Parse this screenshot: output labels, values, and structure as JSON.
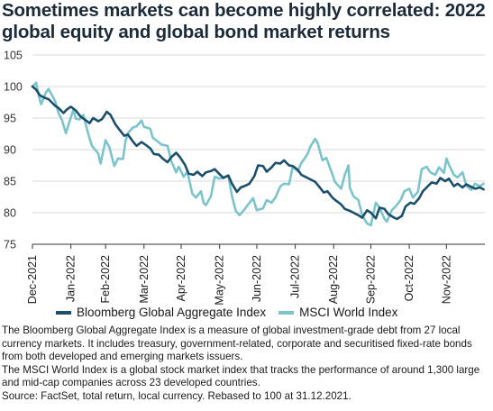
{
  "title": "Sometimes markets can become highly correlated: 2022 global equity and global bond market returns",
  "colors": {
    "bond": "#1b4f6b",
    "equity": "#7cc4cc",
    "grid": "#d9d9d9",
    "axis": "#333333"
  },
  "chart_data": {
    "type": "line",
    "ylim": [
      75,
      105
    ],
    "yticks": [
      75,
      80,
      85,
      90,
      95,
      100,
      105
    ],
    "xlim": [
      "2021-12-31",
      "2022-12-31"
    ],
    "xticks": [
      {
        "date": "2021-12-31",
        "label": "Dec-2021"
      },
      {
        "date": "2022-01-31",
        "label": "Jan-2022"
      },
      {
        "date": "2022-02-28",
        "label": "Feb-2022"
      },
      {
        "date": "2022-03-31",
        "label": "Mar-2022"
      },
      {
        "date": "2022-04-30",
        "label": "Apr-2022"
      },
      {
        "date": "2022-05-31",
        "label": "May-2022"
      },
      {
        "date": "2022-06-30",
        "label": "Jun-2022"
      },
      {
        "date": "2022-07-31",
        "label": "Jul-2022"
      },
      {
        "date": "2022-08-31",
        "label": "Aug-2022"
      },
      {
        "date": "2022-09-30",
        "label": "Sep-2022"
      },
      {
        "date": "2022-10-31",
        "label": "Oct-2022"
      },
      {
        "date": "2022-11-30",
        "label": "Nov-2022"
      }
    ],
    "series": [
      {
        "name": "Bloomberg Global Aggregate Index",
        "color": "#1b4f6b",
        "points": [
          [
            "2021-12-31",
            100
          ],
          [
            "2022-01-03",
            99.5
          ],
          [
            "2022-01-06",
            98.6
          ],
          [
            "2022-01-10",
            98.2
          ],
          [
            "2022-01-13",
            98.0
          ],
          [
            "2022-01-18",
            97.0
          ],
          [
            "2022-01-21",
            96.6
          ],
          [
            "2022-01-25",
            95.8
          ],
          [
            "2022-01-28",
            96.4
          ],
          [
            "2022-01-31",
            96.8
          ],
          [
            "2022-02-04",
            96.2
          ],
          [
            "2022-02-08",
            95.2
          ],
          [
            "2022-02-11",
            94.8
          ],
          [
            "2022-02-15",
            94.2
          ],
          [
            "2022-02-18",
            95.0
          ],
          [
            "2022-02-22",
            94.5
          ],
          [
            "2022-02-25",
            94.8
          ],
          [
            "2022-03-01",
            96.0
          ],
          [
            "2022-03-04",
            95.5
          ],
          [
            "2022-03-08",
            94.0
          ],
          [
            "2022-03-11",
            93.2
          ],
          [
            "2022-03-15",
            92.2
          ],
          [
            "2022-03-18",
            92.4
          ],
          [
            "2022-03-22",
            91.3
          ],
          [
            "2022-03-25",
            90.6
          ],
          [
            "2022-03-29",
            91.2
          ],
          [
            "2022-04-01",
            90.8
          ],
          [
            "2022-04-05",
            90.2
          ],
          [
            "2022-04-08",
            89.3
          ],
          [
            "2022-04-12",
            89.2
          ],
          [
            "2022-04-15",
            88.6
          ],
          [
            "2022-04-19",
            88.0
          ],
          [
            "2022-04-22",
            88.8
          ],
          [
            "2022-04-26",
            89.5
          ],
          [
            "2022-04-29",
            88.8
          ],
          [
            "2022-05-03",
            87.6
          ],
          [
            "2022-05-06",
            86.2
          ],
          [
            "2022-05-10",
            86.0
          ],
          [
            "2022-05-13",
            86.5
          ],
          [
            "2022-05-17",
            85.8
          ],
          [
            "2022-05-20",
            86.4
          ],
          [
            "2022-05-24",
            86.6
          ],
          [
            "2022-05-27",
            86.9
          ],
          [
            "2022-05-31",
            86.1
          ],
          [
            "2022-06-03",
            85.5
          ],
          [
            "2022-06-07",
            85.9
          ],
          [
            "2022-06-10",
            84.6
          ],
          [
            "2022-06-14",
            83.3
          ],
          [
            "2022-06-17",
            84.0
          ],
          [
            "2022-06-21",
            84.3
          ],
          [
            "2022-06-24",
            84.6
          ],
          [
            "2022-06-28",
            85.8
          ],
          [
            "2022-07-01",
            87.5
          ],
          [
            "2022-07-05",
            87.4
          ],
          [
            "2022-07-08",
            86.5
          ],
          [
            "2022-07-12",
            87.2
          ],
          [
            "2022-07-15",
            87.9
          ],
          [
            "2022-07-19",
            87.8
          ],
          [
            "2022-07-22",
            88.3
          ],
          [
            "2022-07-26",
            87.5
          ],
          [
            "2022-07-29",
            87.4
          ],
          [
            "2022-08-02",
            86.8
          ],
          [
            "2022-08-05",
            86.0
          ],
          [
            "2022-08-09",
            85.6
          ],
          [
            "2022-08-12",
            85.3
          ],
          [
            "2022-08-16",
            84.9
          ],
          [
            "2022-08-19",
            84.2
          ],
          [
            "2022-08-23",
            83.2
          ],
          [
            "2022-08-26",
            83.4
          ],
          [
            "2022-08-30",
            82.4
          ],
          [
            "2022-09-02",
            81.9
          ],
          [
            "2022-09-06",
            81.3
          ],
          [
            "2022-09-09",
            80.6
          ],
          [
            "2022-09-13",
            80.3
          ],
          [
            "2022-09-16",
            80.0
          ],
          [
            "2022-09-20",
            79.6
          ],
          [
            "2022-09-23",
            79.2
          ],
          [
            "2022-09-27",
            80.4
          ],
          [
            "2022-09-30",
            80.0
          ],
          [
            "2022-10-04",
            79.1
          ],
          [
            "2022-10-07",
            80.8
          ],
          [
            "2022-10-11",
            80.6
          ],
          [
            "2022-10-14",
            79.8
          ],
          [
            "2022-10-18",
            79.3
          ],
          [
            "2022-10-21",
            79.0
          ],
          [
            "2022-10-25",
            79.5
          ],
          [
            "2022-10-28",
            81.0
          ],
          [
            "2022-11-01",
            81.6
          ],
          [
            "2022-11-04",
            81.4
          ],
          [
            "2022-11-08",
            82.3
          ],
          [
            "2022-11-11",
            83.4
          ],
          [
            "2022-11-15",
            84.2
          ],
          [
            "2022-11-18",
            84.8
          ],
          [
            "2022-11-22",
            84.6
          ],
          [
            "2022-11-25",
            85.5
          ],
          [
            "2022-11-29",
            85.0
          ],
          [
            "2022-12-02",
            85.4
          ],
          [
            "2022-12-06",
            84.2
          ],
          [
            "2022-12-09",
            84.6
          ],
          [
            "2022-12-13",
            84.0
          ],
          [
            "2022-12-16",
            84.5
          ],
          [
            "2022-12-20",
            84.1
          ],
          [
            "2022-12-23",
            83.8
          ],
          [
            "2022-12-27",
            84.0
          ],
          [
            "2022-12-30",
            83.7
          ]
        ]
      },
      {
        "name": "MSCI World Index",
        "color": "#7cc4cc",
        "points": [
          [
            "2021-12-31",
            100
          ],
          [
            "2022-01-03",
            100.6
          ],
          [
            "2022-01-05",
            98.6
          ],
          [
            "2022-01-07",
            97.2
          ],
          [
            "2022-01-11",
            99.1
          ],
          [
            "2022-01-13",
            99.6
          ],
          [
            "2022-01-18",
            97.8
          ],
          [
            "2022-01-21",
            95.8
          ],
          [
            "2022-01-24",
            94.6
          ],
          [
            "2022-01-27",
            92.6
          ],
          [
            "2022-01-31",
            95.1
          ],
          [
            "2022-02-02",
            96.3
          ],
          [
            "2022-02-04",
            94.9
          ],
          [
            "2022-02-07",
            94.8
          ],
          [
            "2022-02-10",
            95.5
          ],
          [
            "2022-02-14",
            92.5
          ],
          [
            "2022-02-17",
            90.6
          ],
          [
            "2022-02-22",
            89.4
          ],
          [
            "2022-02-24",
            87.8
          ],
          [
            "2022-02-28",
            91.5
          ],
          [
            "2022-03-03",
            90.4
          ],
          [
            "2022-03-07",
            87.4
          ],
          [
            "2022-03-10",
            88.6
          ],
          [
            "2022-03-14",
            88.5
          ],
          [
            "2022-03-16",
            91.3
          ],
          [
            "2022-03-18",
            92.6
          ],
          [
            "2022-03-22",
            93.5
          ],
          [
            "2022-03-25",
            93.7
          ],
          [
            "2022-03-29",
            94.6
          ],
          [
            "2022-03-31",
            93.6
          ],
          [
            "2022-04-05",
            93.3
          ],
          [
            "2022-04-07",
            91.9
          ],
          [
            "2022-04-11",
            91.3
          ],
          [
            "2022-04-14",
            90.8
          ],
          [
            "2022-04-19",
            90.6
          ],
          [
            "2022-04-22",
            88.2
          ],
          [
            "2022-04-26",
            86.4
          ],
          [
            "2022-04-28",
            87.3
          ],
          [
            "2022-05-02",
            85.7
          ],
          [
            "2022-05-05",
            86.5
          ],
          [
            "2022-05-09",
            83.0
          ],
          [
            "2022-05-12",
            82.4
          ],
          [
            "2022-05-16",
            83.4
          ],
          [
            "2022-05-18",
            81.6
          ],
          [
            "2022-05-20",
            81.2
          ],
          [
            "2022-05-24",
            82.6
          ],
          [
            "2022-05-27",
            85.7
          ],
          [
            "2022-05-31",
            85.4
          ],
          [
            "2022-06-03",
            85.6
          ],
          [
            "2022-06-07",
            85.9
          ],
          [
            "2022-06-10",
            82.6
          ],
          [
            "2022-06-13",
            80.3
          ],
          [
            "2022-06-16",
            79.6
          ],
          [
            "2022-06-20",
            80.5
          ],
          [
            "2022-06-23",
            81.3
          ],
          [
            "2022-06-27",
            82.3
          ],
          [
            "2022-06-30",
            80.4
          ],
          [
            "2022-07-05",
            80.7
          ],
          [
            "2022-07-08",
            82.0
          ],
          [
            "2022-07-12",
            81.6
          ],
          [
            "2022-07-15",
            82.4
          ],
          [
            "2022-07-19",
            84.2
          ],
          [
            "2022-07-22",
            84.6
          ],
          [
            "2022-07-26",
            84.5
          ],
          [
            "2022-07-29",
            87.3
          ],
          [
            "2022-08-02",
            86.6
          ],
          [
            "2022-08-05",
            87.9
          ],
          [
            "2022-08-10",
            89.3
          ],
          [
            "2022-08-12",
            90.4
          ],
          [
            "2022-08-16",
            91.7
          ],
          [
            "2022-08-18",
            91.1
          ],
          [
            "2022-08-22",
            88.3
          ],
          [
            "2022-08-25",
            88.7
          ],
          [
            "2022-08-29",
            86.6
          ],
          [
            "2022-09-01",
            84.9
          ],
          [
            "2022-09-06",
            83.8
          ],
          [
            "2022-09-09",
            86.0
          ],
          [
            "2022-09-12",
            87.5
          ],
          [
            "2022-09-13",
            84.0
          ],
          [
            "2022-09-16",
            82.6
          ],
          [
            "2022-09-20",
            82.0
          ],
          [
            "2022-09-23",
            79.6
          ],
          [
            "2022-09-27",
            78.3
          ],
          [
            "2022-09-30",
            78.0
          ],
          [
            "2022-10-04",
            81.6
          ],
          [
            "2022-10-07",
            80.8
          ],
          [
            "2022-10-11",
            79.0
          ],
          [
            "2022-10-13",
            78.6
          ],
          [
            "2022-10-17",
            80.4
          ],
          [
            "2022-10-20",
            81.0
          ],
          [
            "2022-10-24",
            82.0
          ],
          [
            "2022-10-27",
            83.4
          ],
          [
            "2022-10-31",
            83.8
          ],
          [
            "2022-11-03",
            82.4
          ],
          [
            "2022-11-07",
            83.3
          ],
          [
            "2022-11-10",
            86.9
          ],
          [
            "2022-11-14",
            87.3
          ],
          [
            "2022-11-17",
            86.4
          ],
          [
            "2022-11-21",
            86.0
          ],
          [
            "2022-11-24",
            87.2
          ],
          [
            "2022-11-28",
            86.3
          ],
          [
            "2022-11-30",
            88.6
          ],
          [
            "2022-12-02",
            87.6
          ],
          [
            "2022-12-06",
            86.0
          ],
          [
            "2022-12-09",
            85.6
          ],
          [
            "2022-12-13",
            86.4
          ],
          [
            "2022-12-16",
            84.3
          ],
          [
            "2022-12-20",
            83.6
          ],
          [
            "2022-12-23",
            84.6
          ],
          [
            "2022-12-27",
            84.2
          ],
          [
            "2022-12-30",
            84.6
          ]
        ]
      }
    ]
  },
  "legend": {
    "bond": "Bloomberg Global Aggregate Index",
    "equity": "MSCI World Index"
  },
  "notes": [
    "The Bloomberg Global Aggregate Index is a measure of global investment-grade debt from 27 local currency markets. It includes treasury, government-related, corporate and securitised fixed-rate bonds from both developed and emerging markets issuers.",
    "The MSCI World Index is a global stock market index that tracks the performance of around 1,300 large and mid-cap companies across 23 developed countries.",
    "Source: FactSet, total return, local currency. Rebased to 100 at 31.12.2021."
  ]
}
